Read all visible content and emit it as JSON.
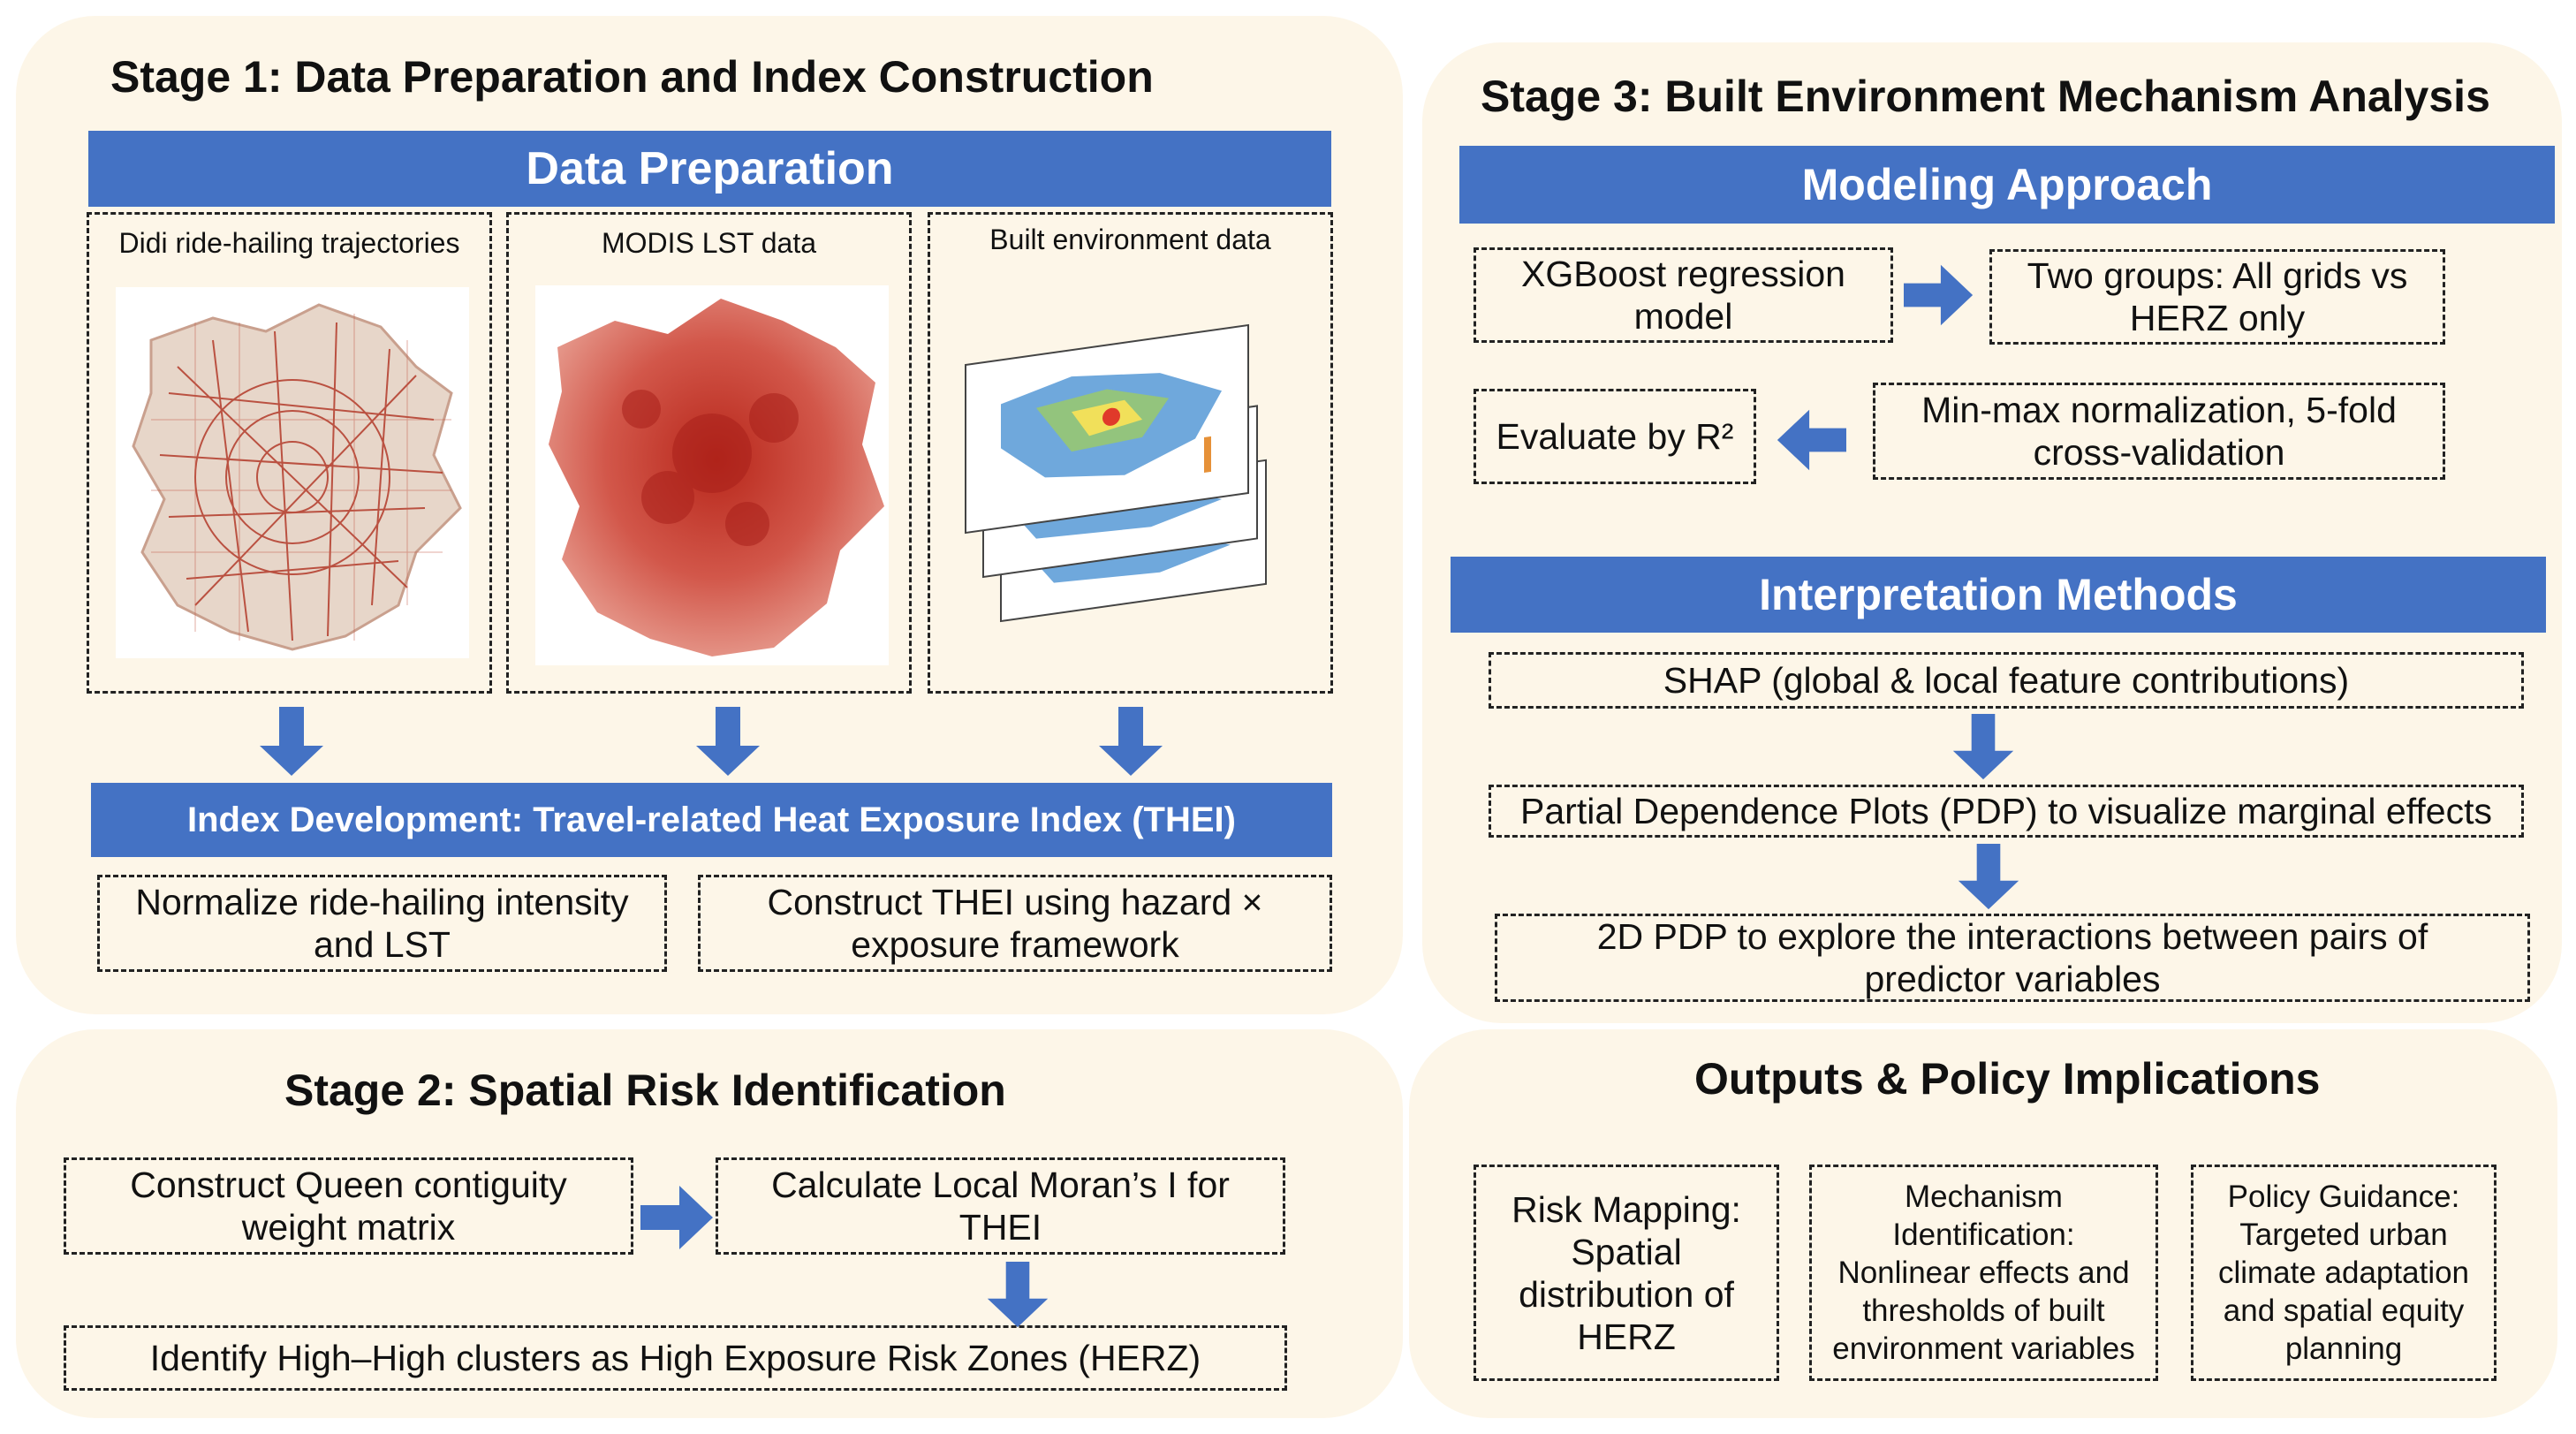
{
  "stage1": {
    "title": "Stage 1: Data Preparation and Index Construction",
    "data_prep_header": "Data Preparation",
    "sources": [
      {
        "label": "Didi ride-hailing trajectories"
      },
      {
        "label": "MODIS LST data"
      },
      {
        "label": "Built environment data"
      }
    ],
    "index_header": "Index Development: Travel-related Heat Exposure Index (THEI)",
    "steps": [
      {
        "line1": "Normalize ride-hailing intensity",
        "line2": "and LST"
      },
      {
        "line1": "Construct THEI using hazard ×",
        "line2": "exposure framework"
      }
    ]
  },
  "stage2": {
    "title": "Stage 2: Spatial Risk Identification",
    "step1": {
      "line1": "Construct Queen contiguity",
      "line2": "weight matrix"
    },
    "step2": {
      "line1": "Calculate Local Moran’s I for",
      "line2": "THEI"
    },
    "step3": "Identify High–High clusters as High Exposure Risk Zones (HERZ)"
  },
  "stage3": {
    "title": "Stage 3: Built Environment Mechanism Analysis",
    "modeling_header": "Modeling Approach",
    "xgb": {
      "line1": "XGBoost regression",
      "line2": "model"
    },
    "groups": {
      "line1": "Two groups: All grids vs",
      "line2": "HERZ only"
    },
    "evaluate": "Evaluate by R²",
    "normalize": {
      "line1": "Min-max normalization, 5-fold",
      "line2": "cross-validation"
    },
    "interp_header": "Interpretation Methods",
    "shap": "SHAP (global & local feature contributions)",
    "pdp": "Partial Dependence Plots (PDP) to visualize marginal effects",
    "pdp2d": {
      "line1": "2D PDP  to explore the interactions between pairs of",
      "line2": "predictor variables"
    }
  },
  "outputs": {
    "title": "Outputs & Policy Implications",
    "items": [
      {
        "lines": [
          "Risk Mapping:",
          "Spatial",
          "distribution of",
          "HERZ"
        ]
      },
      {
        "lines": [
          "Mechanism",
          "Identification:",
          "Nonlinear effects and",
          "thresholds of built",
          "environment variables"
        ]
      },
      {
        "lines": [
          "Policy Guidance:",
          "Targeted urban",
          "climate adaptation",
          "and spatial equity",
          "planning"
        ]
      }
    ]
  },
  "colors": {
    "accent": "#4472c4",
    "panel": "#fdf6e8",
    "heat": "#c0392b"
  }
}
